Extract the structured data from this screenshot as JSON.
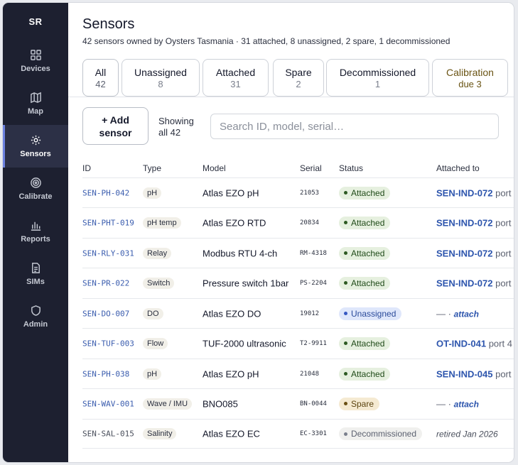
{
  "sidebar": {
    "brand": "SR",
    "items": [
      {
        "label": "Devices",
        "icon": "grid-icon",
        "active": false
      },
      {
        "label": "Map",
        "icon": "map-icon",
        "active": false
      },
      {
        "label": "Sensors",
        "icon": "sensor-icon",
        "active": true
      },
      {
        "label": "Calibrate",
        "icon": "target-icon",
        "active": false
      },
      {
        "label": "Reports",
        "icon": "bar-chart-icon",
        "active": false
      },
      {
        "label": "SIMs",
        "icon": "sim-card-icon",
        "active": false
      },
      {
        "label": "Admin",
        "icon": "shield-icon",
        "active": false
      }
    ]
  },
  "header": {
    "title": "Sensors",
    "subtitle": "42 sensors owned by Oysters Tasmania · 31 attached, 8 unassigned, 2 spare, 1 decommissioned"
  },
  "tabs": [
    {
      "label": "All",
      "count": "42"
    },
    {
      "label": "Unassigned",
      "count": "8"
    },
    {
      "label": "Attached",
      "count": "31"
    },
    {
      "label": "Spare",
      "count": "2"
    },
    {
      "label": "Decommissioned",
      "count": "1"
    },
    {
      "label": "Calibration",
      "label2": "due",
      "count": "3"
    }
  ],
  "toolbar": {
    "add_line1": "+ Add",
    "add_line2": "sensor",
    "showing_line1": "Showing",
    "showing_line2": "all 42",
    "search_placeholder": "Search ID, model, serial…"
  },
  "table": {
    "columns": {
      "id": "ID",
      "type": "Type",
      "model": "Model",
      "serial": "Serial",
      "status": "Status",
      "attached": "Attached to"
    },
    "rows": [
      {
        "id": "SEN-PH-042",
        "type": "pH",
        "model": "Atlas EZO pH",
        "serial": "21053",
        "status": "Attached",
        "device": "SEN-IND-072",
        "port": "port"
      },
      {
        "id": "SEN-PHT-019",
        "type": "pH temp",
        "model": "Atlas EZO RTD",
        "serial": "20834",
        "status": "Attached",
        "device": "SEN-IND-072",
        "port": "port"
      },
      {
        "id": "SEN-RLY-031",
        "type": "Relay",
        "model": "Modbus RTU 4-ch",
        "serial": "RM-4318",
        "status": "Attached",
        "device": "SEN-IND-072",
        "port": "port"
      },
      {
        "id": "SEN-PR-022",
        "type": "Switch",
        "model": "Pressure switch 1bar",
        "serial": "PS-2204",
        "status": "Attached",
        "device": "SEN-IND-072",
        "port": "port"
      },
      {
        "id": "SEN-DO-007",
        "type": "DO",
        "model": "Atlas EZO DO",
        "serial": "19012",
        "status": "Unassigned",
        "dash": "— ·",
        "link": "attach"
      },
      {
        "id": "SEN-TUF-003",
        "type": "Flow",
        "model": "TUF-2000 ultrasonic",
        "serial": "T2-9911",
        "status": "Attached",
        "device": "OT-IND-041",
        "port": "port 4"
      },
      {
        "id": "SEN-PH-038",
        "type": "pH",
        "model": "Atlas EZO pH",
        "serial": "21048",
        "status": "Attached",
        "device": "SEN-IND-045",
        "port": "port"
      },
      {
        "id": "SEN-WAV-001",
        "type": "Wave / IMU",
        "model": "BNO085",
        "serial": "BN-0044",
        "status": "Spare",
        "dash": "— ·",
        "link": "attach"
      },
      {
        "id": "SEN-SAL-015",
        "type": "Salinity",
        "model": "Atlas EZO EC",
        "serial": "EC-3301",
        "status": "Decommissioned",
        "retired": "retired Jan 2026"
      }
    ]
  }
}
